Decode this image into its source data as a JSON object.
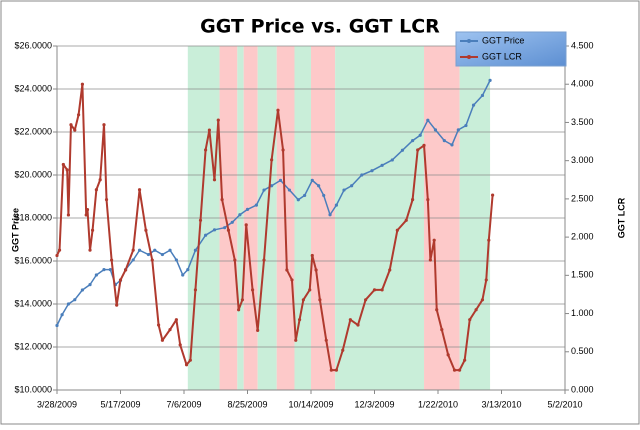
{
  "chart_data": {
    "type": "line",
    "title": "GGT Price vs. GGT LCR",
    "y_label": "GGT Price",
    "y2_label": "GGT LCR",
    "xlim": [
      "2009-03-28",
      "2010-05-02"
    ],
    "xticks": [
      {
        "value": "2009-03-28",
        "label": "3/28/2009"
      },
      {
        "value": "2009-05-17",
        "label": "5/17/2009"
      },
      {
        "value": "2009-07-06",
        "label": "7/6/2009"
      },
      {
        "value": "2009-08-25",
        "label": "8/25/2009"
      },
      {
        "value": "2009-10-14",
        "label": "10/14/2009"
      },
      {
        "value": "2009-12-03",
        "label": "12/3/2009"
      },
      {
        "value": "2010-01-22",
        "label": "1/22/2010"
      },
      {
        "value": "2010-03-13",
        "label": "3/13/2010"
      },
      {
        "value": "2010-05-02",
        "label": "5/2/2010"
      }
    ],
    "ylim": [
      10,
      26
    ],
    "yticks": [
      {
        "value": 10,
        "label": "$10.0000"
      },
      {
        "value": 12,
        "label": "$12.0000"
      },
      {
        "value": 14,
        "label": "$14.0000"
      },
      {
        "value": 16,
        "label": "$16.0000"
      },
      {
        "value": 18,
        "label": "$18.0000"
      },
      {
        "value": 20,
        "label": "$20.0000"
      },
      {
        "value": 22,
        "label": "$22.0000"
      },
      {
        "value": 24,
        "label": "$24.0000"
      },
      {
        "value": 26,
        "label": "$26.0000"
      }
    ],
    "y2lim": [
      0,
      4.5
    ],
    "y2ticks": [
      {
        "value": 0,
        "label": "0.000"
      },
      {
        "value": 0.5,
        "label": "0.500"
      },
      {
        "value": 1,
        "label": "1.000"
      },
      {
        "value": 1.5,
        "label": "1.500"
      },
      {
        "value": 2,
        "label": "2.000"
      },
      {
        "value": 2.5,
        "label": "2.500"
      },
      {
        "value": 3,
        "label": "3.000"
      },
      {
        "value": 3.5,
        "label": "3.500"
      },
      {
        "value": 4,
        "label": "4.000"
      },
      {
        "value": 4.5,
        "label": "4.500"
      }
    ],
    "grid": true,
    "legend": "top-right",
    "bands": [
      {
        "start": "2009-07-09",
        "end": "2009-08-03",
        "color": "#c9eed9"
      },
      {
        "start": "2009-08-03",
        "end": "2009-08-17",
        "color": "#fdc9c9"
      },
      {
        "start": "2009-08-17",
        "end": "2009-08-22",
        "color": "#c9eed9"
      },
      {
        "start": "2009-08-22",
        "end": "2009-09-02",
        "color": "#fdc9c9"
      },
      {
        "start": "2009-09-02",
        "end": "2009-09-17",
        "color": "#c9eed9"
      },
      {
        "start": "2009-09-17",
        "end": "2009-10-01",
        "color": "#fdc9c9"
      },
      {
        "start": "2009-10-01",
        "end": "2009-10-14",
        "color": "#c9eed9"
      },
      {
        "start": "2009-10-14",
        "end": "2009-11-02",
        "color": "#fdc9c9"
      },
      {
        "start": "2009-11-02",
        "end": "2010-01-11",
        "color": "#c9eed9"
      },
      {
        "start": "2010-01-11",
        "end": "2010-02-08",
        "color": "#fdc9c9"
      },
      {
        "start": "2010-02-08",
        "end": "2010-03-04",
        "color": "#c9eed9"
      }
    ],
    "series": [
      {
        "name": "GGT Price",
        "color": "#4a7ebb",
        "x": [
          "2009-03-28",
          "2009-04-01",
          "2009-04-06",
          "2009-04-11",
          "2009-04-17",
          "2009-04-23",
          "2009-04-28",
          "2009-05-04",
          "2009-05-09",
          "2009-05-13",
          "2009-05-17",
          "2009-05-21",
          "2009-05-27",
          "2009-06-01",
          "2009-06-08",
          "2009-06-13",
          "2009-06-19",
          "2009-06-25",
          "2009-06-30",
          "2009-07-05",
          "2009-07-09",
          "2009-07-15",
          "2009-07-23",
          "2009-07-30",
          "2009-08-07",
          "2009-08-13",
          "2009-08-19",
          "2009-08-25",
          "2009-09-01",
          "2009-09-07",
          "2009-09-13",
          "2009-09-20",
          "2009-09-27",
          "2009-10-04",
          "2009-10-09",
          "2009-10-15",
          "2009-10-20",
          "2009-10-24",
          "2009-10-29",
          "2009-11-03",
          "2009-11-09",
          "2009-11-15",
          "2009-11-23",
          "2009-12-01",
          "2009-12-09",
          "2009-12-17",
          "2009-12-25",
          "2010-01-02",
          "2010-01-08",
          "2010-01-14",
          "2010-01-20",
          "2010-01-27",
          "2010-02-02",
          "2010-02-07",
          "2010-02-13",
          "2010-02-19",
          "2010-02-26",
          "2010-03-04"
        ],
        "values": [
          13.0,
          13.5,
          14.0,
          14.2,
          14.65,
          14.9,
          15.35,
          15.6,
          15.6,
          14.9,
          15.1,
          15.6,
          16.05,
          16.5,
          16.3,
          16.5,
          16.3,
          16.5,
          16.05,
          15.35,
          15.6,
          16.5,
          17.2,
          17.45,
          17.55,
          17.8,
          18.15,
          18.4,
          18.6,
          19.3,
          19.5,
          19.75,
          19.3,
          18.85,
          19.05,
          19.75,
          19.5,
          19.05,
          18.15,
          18.6,
          19.3,
          19.5,
          20.0,
          20.2,
          20.45,
          20.7,
          21.15,
          21.6,
          21.85,
          22.55,
          22.1,
          21.6,
          21.4,
          22.1,
          22.3,
          23.25,
          23.7,
          24.4
        ]
      },
      {
        "name": "GGT LCR",
        "color": "#b03a2e",
        "axis": "y2",
        "x": [
          "2009-03-28",
          "2009-03-30",
          "2009-04-02",
          "2009-04-05",
          "2009-04-06",
          "2009-04-08",
          "2009-04-11",
          "2009-04-14",
          "2009-04-17",
          "2009-04-20",
          "2009-04-21",
          "2009-04-23",
          "2009-04-25",
          "2009-04-28",
          "2009-05-01",
          "2009-05-04",
          "2009-05-06",
          "2009-05-10",
          "2009-05-14",
          "2009-05-17",
          "2009-05-21",
          "2009-05-27",
          "2009-06-01",
          "2009-06-06",
          "2009-06-11",
          "2009-06-16",
          "2009-06-19",
          "2009-06-25",
          "2009-06-30",
          "2009-07-03",
          "2009-07-08",
          "2009-07-11",
          "2009-07-15",
          "2009-07-19",
          "2009-07-23",
          "2009-07-26",
          "2009-07-30",
          "2009-08-02",
          "2009-08-05",
          "2009-08-10",
          "2009-08-15",
          "2009-08-18",
          "2009-08-21",
          "2009-08-24",
          "2009-08-29",
          "2009-09-02",
          "2009-09-07",
          "2009-09-13",
          "2009-09-18",
          "2009-09-22",
          "2009-09-25",
          "2009-09-29",
          "2009-10-02",
          "2009-10-05",
          "2009-10-08",
          "2009-10-13",
          "2009-10-15",
          "2009-10-18",
          "2009-10-21",
          "2009-10-26",
          "2009-10-30",
          "2009-11-03",
          "2009-11-08",
          "2009-11-14",
          "2009-11-20",
          "2009-11-26",
          "2009-12-03",
          "2009-12-09",
          "2009-12-15",
          "2009-12-21",
          "2009-12-28",
          "2010-01-02",
          "2010-01-06",
          "2010-01-11",
          "2010-01-14",
          "2010-01-16",
          "2010-01-19",
          "2010-01-21",
          "2010-01-25",
          "2010-01-30",
          "2010-02-04",
          "2010-02-08",
          "2010-02-12",
          "2010-02-16",
          "2010-02-21",
          "2010-02-26",
          "2010-03-01",
          "2010-03-03",
          "2010-03-06"
        ],
        "values": [
          1.76,
          1.83,
          2.95,
          2.88,
          2.29,
          3.47,
          3.4,
          3.6,
          4.0,
          2.29,
          2.36,
          1.83,
          2.09,
          2.62,
          2.75,
          3.47,
          2.49,
          1.7,
          1.11,
          1.44,
          1.57,
          1.83,
          2.62,
          2.09,
          1.7,
          0.85,
          0.65,
          0.79,
          0.92,
          0.59,
          0.33,
          0.39,
          1.31,
          2.22,
          3.14,
          3.4,
          2.75,
          3.53,
          2.49,
          2.09,
          1.7,
          1.05,
          1.18,
          2.16,
          1.31,
          0.78,
          1.7,
          3.01,
          3.66,
          3.14,
          1.57,
          1.44,
          0.65,
          0.92,
          1.18,
          1.31,
          1.76,
          1.57,
          1.18,
          0.65,
          0.26,
          0.26,
          0.52,
          0.92,
          0.85,
          1.18,
          1.31,
          1.31,
          1.57,
          2.09,
          2.22,
          2.49,
          3.14,
          3.2,
          2.49,
          1.7,
          1.96,
          1.05,
          0.79,
          0.46,
          0.26,
          0.26,
          0.39,
          0.92,
          1.05,
          1.18,
          1.44,
          1.96,
          2.55
        ]
      }
    ]
  }
}
